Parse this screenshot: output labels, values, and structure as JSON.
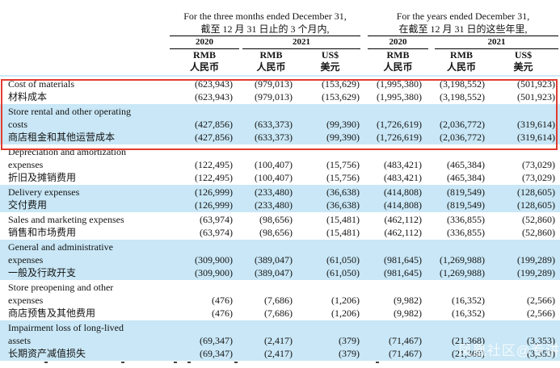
{
  "colors": {
    "highlight": "#c9e7f6",
    "rule_blue": "#cfe9f7",
    "box_red": "#e23c30"
  },
  "header": {
    "group1": {
      "en": "For the three months ended December 31,",
      "zh": "截至 12 月 31 日止的 3 个月内,"
    },
    "group2": {
      "en": "For the years ended December 31,",
      "zh": "在截至 12 月 31 日的这些年里,"
    },
    "years": {
      "g1_2020": "2020",
      "g1_2021": "2021",
      "g2_2020": "2020",
      "g2_2021": "2021"
    },
    "currency": {
      "col1_en": "RMB",
      "col1_zh": "人民币",
      "col2_en": "RMB",
      "col2_zh": "人民币",
      "col3_en": "US$",
      "col3_zh": "美元",
      "col4_en": "RMB",
      "col4_zh": "人民币",
      "col5_en": "RMB",
      "col5_zh": "人民币",
      "col6_en": "US$",
      "col6_zh": "美元"
    }
  },
  "rows": [
    {
      "en_lines": [
        "Cost of materials"
      ],
      "zh": "材料成本",
      "values": [
        "(623,943)",
        "(979,013)",
        "(153,629)",
        "(1,995,380)",
        "(3,198,552)",
        "(501,923)"
      ],
      "highlight": false,
      "in_red_box": true
    },
    {
      "en_lines": [
        "Store rental and other operating",
        "costs"
      ],
      "zh": "商店租金和其他运营成本",
      "values": [
        "(427,856)",
        "(633,373)",
        "(99,390)",
        "(1,726,619)",
        "(2,036,772)",
        "(319,614)"
      ],
      "highlight": true,
      "in_red_box": true
    },
    {
      "en_lines": [
        "Depreciation and amortization",
        "expenses"
      ],
      "zh": "折旧及摊销费用",
      "values": [
        "(122,495)",
        "(100,407)",
        "(15,756)",
        "(483,421)",
        "(465,384)",
        "(73,029)"
      ],
      "highlight": false,
      "in_red_box": false
    },
    {
      "en_lines": [
        "Delivery expenses"
      ],
      "zh": "交付费用",
      "values": [
        "(126,999)",
        "(233,480)",
        "(36,638)",
        "(414,808)",
        "(819,549)",
        "(128,605)"
      ],
      "highlight": true,
      "in_red_box": false
    },
    {
      "en_lines": [
        "Sales and marketing expenses"
      ],
      "zh": "销售和市场费用",
      "values": [
        "(63,974)",
        "(98,656)",
        "(15,481)",
        "(462,112)",
        "(336,855)",
        "(52,860)"
      ],
      "highlight": false,
      "in_red_box": false
    },
    {
      "en_lines": [
        "General and administrative",
        "expenses"
      ],
      "zh": "一般及行政开支",
      "values": [
        "(309,900)",
        "(389,047)",
        "(61,050)",
        "(981,645)",
        "(1,269,988)",
        "(199,289)"
      ],
      "highlight": true,
      "in_red_box": false
    },
    {
      "en_lines": [
        "Store preopening and other",
        "expenses"
      ],
      "zh": "商店预售及其他费用",
      "values": [
        "(476)",
        "(7,686)",
        "(1,206)",
        "(9,982)",
        "(16,352)",
        "(2,566)"
      ],
      "highlight": false,
      "in_red_box": false
    },
    {
      "en_lines": [
        "Impairment loss of long-lived",
        "assets"
      ],
      "zh": "长期资产减值损失",
      "values": [
        "(69,347)",
        "(2,417)",
        "(379)",
        "(71,467)",
        "(21,368)",
        "(3,353)"
      ],
      "highlight": true,
      "in_red_box": false
    }
  ],
  "watermark": {
    "text": "凤凰社区@专讲"
  }
}
